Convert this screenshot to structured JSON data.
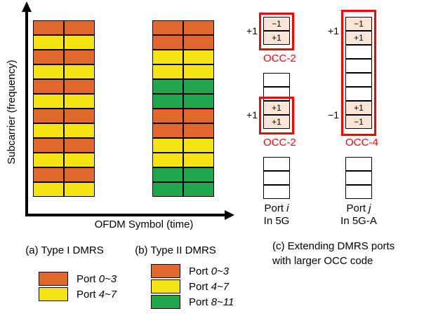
{
  "colors": {
    "orange": "#E2672B",
    "yellow": "#F5E411",
    "green": "#1FA84C",
    "peach": "#FBE5D6",
    "red": "#FF0000"
  },
  "axes": {
    "y_label": "Subcarrier (frequency)",
    "x_label": "OFDM Symbol (time)"
  },
  "grid_a": {
    "rows": [
      "orange",
      "yellow",
      "orange",
      "yellow",
      "orange",
      "yellow",
      "orange",
      "yellow",
      "orange",
      "yellow",
      "orange",
      "yellow"
    ]
  },
  "grid_b": {
    "rows": [
      "orange",
      "orange",
      "yellow",
      "yellow",
      "green",
      "green",
      "orange",
      "orange",
      "yellow",
      "yellow",
      "green",
      "green"
    ]
  },
  "captions": {
    "a": "(a) Type I DMRS",
    "b": "(b) Type II DMRS",
    "c_line1": "(c) Extending DMRS ports",
    "c_line2": "with larger OCC code"
  },
  "panel_c": {
    "col_5g": {
      "outer_top": "+1",
      "outer_bottom": "+1",
      "items": [
        {
          "t": "cell",
          "v": "−1",
          "s": 1
        },
        {
          "t": "cell",
          "v": "+1",
          "s": 1
        },
        {
          "t": "gap",
          "label": "OCC-2"
        },
        {
          "t": "cell"
        },
        {
          "t": "cell"
        },
        {
          "t": "cell",
          "v": "+1",
          "s": 1
        },
        {
          "t": "cell",
          "v": "+1",
          "s": 1
        },
        {
          "t": "gap",
          "label": "OCC-2"
        },
        {
          "t": "cell"
        },
        {
          "t": "cell"
        },
        {
          "t": "cell"
        }
      ],
      "port_word": "Port",
      "port_var": "i",
      "port_sub": "In 5G"
    },
    "col_5ga": {
      "outer_top": "+1",
      "outer_bottom": "−1",
      "items": [
        {
          "t": "cell",
          "v": "−1",
          "s": 1
        },
        {
          "t": "cell",
          "v": "+1",
          "s": 1
        },
        {
          "t": "cell"
        },
        {
          "t": "cell"
        },
        {
          "t": "cell"
        },
        {
          "t": "cell"
        },
        {
          "t": "cell",
          "v": "+1",
          "s": 1
        },
        {
          "t": "cell",
          "v": "−1",
          "s": 1
        },
        {
          "t": "gap",
          "label": "OCC-4"
        },
        {
          "t": "cell"
        },
        {
          "t": "cell"
        },
        {
          "t": "cell"
        }
      ],
      "port_word": "Port",
      "port_var": "j",
      "port_sub": "In 5G-A"
    }
  },
  "legend_a": [
    {
      "word": "Port",
      "range": "0~3",
      "color": "orange"
    },
    {
      "word": "Port",
      "range": "4~7",
      "color": "yellow"
    }
  ],
  "legend_b": [
    {
      "word": "Port",
      "range": "0~3",
      "color": "orange"
    },
    {
      "word": "Port",
      "range": "4~7",
      "color": "yellow"
    },
    {
      "word": "Port",
      "range": "8~11",
      "color": "green"
    }
  ]
}
